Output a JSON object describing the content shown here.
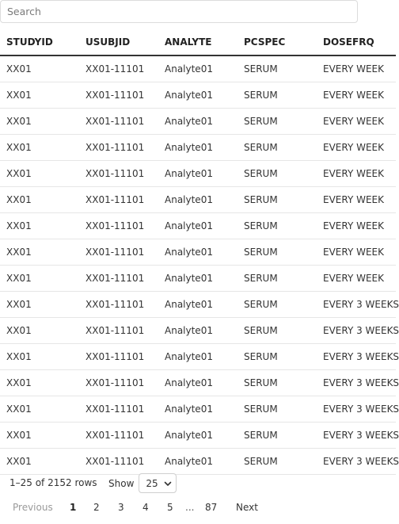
{
  "search": {
    "placeholder": "Search",
    "value": ""
  },
  "table": {
    "columns": [
      "STUDYID",
      "USUBJID",
      "ANALYTE",
      "PCSPEC",
      "DOSEFRQ"
    ],
    "rows": [
      [
        "XX01",
        "XX01-11101",
        "Analyte01",
        "SERUM",
        "EVERY WEEK"
      ],
      [
        "XX01",
        "XX01-11101",
        "Analyte01",
        "SERUM",
        "EVERY WEEK"
      ],
      [
        "XX01",
        "XX01-11101",
        "Analyte01",
        "SERUM",
        "EVERY WEEK"
      ],
      [
        "XX01",
        "XX01-11101",
        "Analyte01",
        "SERUM",
        "EVERY WEEK"
      ],
      [
        "XX01",
        "XX01-11101",
        "Analyte01",
        "SERUM",
        "EVERY WEEK"
      ],
      [
        "XX01",
        "XX01-11101",
        "Analyte01",
        "SERUM",
        "EVERY WEEK"
      ],
      [
        "XX01",
        "XX01-11101",
        "Analyte01",
        "SERUM",
        "EVERY WEEK"
      ],
      [
        "XX01",
        "XX01-11101",
        "Analyte01",
        "SERUM",
        "EVERY WEEK"
      ],
      [
        "XX01",
        "XX01-11101",
        "Analyte01",
        "SERUM",
        "EVERY WEEK"
      ],
      [
        "XX01",
        "XX01-11101",
        "Analyte01",
        "SERUM",
        "EVERY 3 WEEKS"
      ],
      [
        "XX01",
        "XX01-11101",
        "Analyte01",
        "SERUM",
        "EVERY 3 WEEKS"
      ],
      [
        "XX01",
        "XX01-11101",
        "Analyte01",
        "SERUM",
        "EVERY 3 WEEKS"
      ],
      [
        "XX01",
        "XX01-11101",
        "Analyte01",
        "SERUM",
        "EVERY 3 WEEKS"
      ],
      [
        "XX01",
        "XX01-11101",
        "Analyte01",
        "SERUM",
        "EVERY 3 WEEKS"
      ],
      [
        "XX01",
        "XX01-11101",
        "Analyte01",
        "SERUM",
        "EVERY 3 WEEKS"
      ],
      [
        "XX01",
        "XX01-11101",
        "Analyte01",
        "SERUM",
        "EVERY 3 WEEKS"
      ]
    ]
  },
  "footer": {
    "row_info": "1–25 of 2152 rows",
    "show_label": "Show",
    "page_size": "25"
  },
  "pagination": {
    "previous": "Previous",
    "pages": [
      "1",
      "2",
      "3",
      "4",
      "5"
    ],
    "ellipsis": "...",
    "last": "87",
    "next": "Next",
    "current": "1"
  }
}
